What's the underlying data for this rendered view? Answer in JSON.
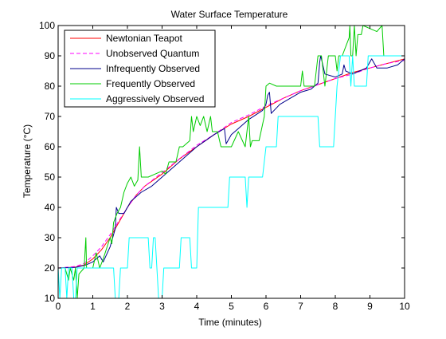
{
  "chart_data": {
    "type": "line",
    "title": "Water Surface Temperature",
    "xlabel": "Time (minutes)",
    "ylabel": "Temperature (°C)",
    "xlim": [
      0,
      10
    ],
    "ylim": [
      10,
      100
    ],
    "x_ticks": [
      0,
      1,
      2,
      3,
      4,
      5,
      6,
      7,
      8,
      9,
      10
    ],
    "y_ticks": [
      10,
      20,
      30,
      40,
      50,
      60,
      70,
      80,
      90,
      100
    ],
    "grid": false,
    "legend_position": "top-left",
    "series": [
      {
        "name": "Newtonian Teapot",
        "color": "#ff0000",
        "dash": "solid",
        "points": [
          [
            0,
            20
          ],
          [
            0.5,
            20.3
          ],
          [
            0.75,
            21
          ],
          [
            1,
            23
          ],
          [
            1.25,
            26
          ],
          [
            1.5,
            30
          ],
          [
            1.75,
            35
          ],
          [
            2,
            40
          ],
          [
            2.25,
            44
          ],
          [
            2.5,
            47
          ],
          [
            3,
            51
          ],
          [
            3.5,
            56
          ],
          [
            4,
            60
          ],
          [
            4.5,
            64
          ],
          [
            5,
            67.5
          ],
          [
            5.5,
            70
          ],
          [
            6,
            73
          ],
          [
            6.5,
            76
          ],
          [
            7,
            78.5
          ],
          [
            7.5,
            80.5
          ],
          [
            8,
            82.5
          ],
          [
            8.5,
            84.5
          ],
          [
            9,
            86
          ],
          [
            9.5,
            87.5
          ],
          [
            10,
            89
          ]
        ]
      },
      {
        "name": "Unobserved Quantum",
        "color": "#ff00ff",
        "dash": "dashed",
        "points": [
          [
            0,
            20
          ],
          [
            0.5,
            20.5
          ],
          [
            0.75,
            21.5
          ],
          [
            1,
            24
          ],
          [
            1.25,
            27
          ],
          [
            1.5,
            31
          ],
          [
            1.75,
            35.5
          ],
          [
            2,
            40
          ],
          [
            2.25,
            44
          ],
          [
            2.5,
            47
          ],
          [
            3,
            51.5
          ],
          [
            3.5,
            56
          ],
          [
            4,
            60.5
          ],
          [
            4.5,
            64
          ],
          [
            5,
            68
          ],
          [
            5.5,
            70.5
          ],
          [
            6,
            73.5
          ],
          [
            6.5,
            76
          ],
          [
            7,
            78.5
          ],
          [
            7.5,
            80.5
          ],
          [
            8,
            82.5
          ],
          [
            8.5,
            84
          ],
          [
            9,
            86
          ],
          [
            9.5,
            87.5
          ],
          [
            10,
            88.5
          ]
        ]
      },
      {
        "name": "Infrequently Observed",
        "color": "#00008b",
        "dash": "solid",
        "points": [
          [
            0,
            20
          ],
          [
            0.5,
            20.2
          ],
          [
            0.8,
            21
          ],
          [
            1,
            22
          ],
          [
            1.2,
            24
          ],
          [
            1.3,
            22
          ],
          [
            1.5,
            27
          ],
          [
            1.65,
            33
          ],
          [
            1.68,
            40
          ],
          [
            1.75,
            38
          ],
          [
            1.9,
            38
          ],
          [
            2.1,
            42
          ],
          [
            2.4,
            45
          ],
          [
            2.7,
            47
          ],
          [
            3,
            50
          ],
          [
            3.5,
            55
          ],
          [
            4,
            60
          ],
          [
            4.5,
            64
          ],
          [
            4.8,
            66
          ],
          [
            4.85,
            61
          ],
          [
            5.0,
            64
          ],
          [
            5.2,
            66
          ],
          [
            5.5,
            69
          ],
          [
            5.9,
            72
          ],
          [
            6.0,
            74
          ],
          [
            6.05,
            77
          ],
          [
            6.1,
            78
          ],
          [
            6.15,
            71
          ],
          [
            6.4,
            74
          ],
          [
            6.7,
            76
          ],
          [
            7,
            78
          ],
          [
            7.3,
            79
          ],
          [
            7.5,
            81
          ],
          [
            7.55,
            88
          ],
          [
            7.58,
            90
          ],
          [
            7.7,
            84
          ],
          [
            8.0,
            83
          ],
          [
            8.2,
            84
          ],
          [
            8.25,
            87
          ],
          [
            8.3,
            85
          ],
          [
            8.5,
            84
          ],
          [
            8.7,
            85
          ],
          [
            8.9,
            86
          ],
          [
            9.0,
            88
          ],
          [
            9.05,
            89
          ],
          [
            9.2,
            86
          ],
          [
            9.5,
            86
          ],
          [
            9.8,
            87
          ],
          [
            10,
            89
          ]
        ]
      },
      {
        "name": "Frequently Observed",
        "color": "#00cc00",
        "dash": "solid",
        "points": [
          [
            0,
            20
          ],
          [
            0.2,
            20
          ],
          [
            0.3,
            16
          ],
          [
            0.35,
            20
          ],
          [
            0.45,
            16
          ],
          [
            0.5,
            20
          ],
          [
            0.55,
            10
          ],
          [
            0.6,
            18
          ],
          [
            0.75,
            20
          ],
          [
            0.8,
            30
          ],
          [
            0.82,
            20
          ],
          [
            1,
            20
          ],
          [
            1.1,
            25
          ],
          [
            1.2,
            20
          ],
          [
            1.3,
            23
          ],
          [
            1.5,
            30
          ],
          [
            1.55,
            28
          ],
          [
            1.6,
            35
          ],
          [
            1.7,
            38
          ],
          [
            1.8,
            40
          ],
          [
            1.9,
            45
          ],
          [
            2.0,
            48
          ],
          [
            2.1,
            50
          ],
          [
            2.2,
            47
          ],
          [
            2.3,
            49
          ],
          [
            2.35,
            60
          ],
          [
            2.4,
            50
          ],
          [
            2.6,
            50
          ],
          [
            2.8,
            51
          ],
          [
            3.0,
            52
          ],
          [
            3.1,
            51
          ],
          [
            3.2,
            55
          ],
          [
            3.4,
            55
          ],
          [
            3.5,
            60
          ],
          [
            3.6,
            60
          ],
          [
            3.8,
            62
          ],
          [
            3.85,
            70
          ],
          [
            3.9,
            65
          ],
          [
            4.0,
            70
          ],
          [
            4.1,
            67
          ],
          [
            4.2,
            70
          ],
          [
            4.3,
            65
          ],
          [
            4.4,
            70
          ],
          [
            4.45,
            65
          ],
          [
            4.6,
            65
          ],
          [
            4.7,
            60
          ],
          [
            4.8,
            60
          ],
          [
            5.0,
            60
          ],
          [
            5.2,
            65
          ],
          [
            5.4,
            60
          ],
          [
            5.5,
            70
          ],
          [
            5.55,
            60
          ],
          [
            5.6,
            62
          ],
          [
            5.8,
            62
          ],
          [
            5.95,
            70
          ],
          [
            6.0,
            80
          ],
          [
            6.1,
            81
          ],
          [
            6.3,
            80
          ],
          [
            6.5,
            80
          ],
          [
            6.7,
            80
          ],
          [
            7.0,
            80
          ],
          [
            7.05,
            85
          ],
          [
            7.1,
            80
          ],
          [
            7.4,
            80
          ],
          [
            7.5,
            90
          ],
          [
            7.6,
            90
          ],
          [
            7.7,
            80
          ],
          [
            7.8,
            90
          ],
          [
            8.0,
            90
          ],
          [
            8.05,
            85
          ],
          [
            8.1,
            90
          ],
          [
            8.2,
            90
          ],
          [
            8.3,
            93
          ],
          [
            8.4,
            96
          ],
          [
            8.42,
            100
          ],
          [
            8.45,
            90
          ],
          [
            8.5,
            90
          ],
          [
            8.55,
            100
          ],
          [
            8.6,
            90
          ],
          [
            8.65,
            97
          ],
          [
            8.75,
            97
          ],
          [
            8.8,
            100
          ],
          [
            9.0,
            99
          ],
          [
            9.2,
            98
          ],
          [
            9.35,
            100
          ],
          [
            9.4,
            90
          ],
          [
            10,
            90
          ]
        ]
      },
      {
        "name": "Aggressively Observed",
        "color": "#00ffff",
        "dash": "solid",
        "points": [
          [
            0,
            20
          ],
          [
            0.05,
            10
          ],
          [
            0.1,
            20
          ],
          [
            0.2,
            20
          ],
          [
            0.25,
            10
          ],
          [
            0.3,
            20
          ],
          [
            0.4,
            20
          ],
          [
            0.45,
            10
          ],
          [
            0.5,
            10
          ],
          [
            0.55,
            20
          ],
          [
            1.6,
            20
          ],
          [
            1.65,
            10
          ],
          [
            1.75,
            10
          ],
          [
            1.8,
            20
          ],
          [
            2.0,
            20
          ],
          [
            2.05,
            30
          ],
          [
            2.6,
            30
          ],
          [
            2.65,
            20
          ],
          [
            2.7,
            20
          ],
          [
            2.75,
            30
          ],
          [
            2.8,
            30
          ],
          [
            2.85,
            20
          ],
          [
            2.9,
            10
          ],
          [
            3.0,
            10
          ],
          [
            3.05,
            20
          ],
          [
            3.5,
            20
          ],
          [
            3.55,
            30
          ],
          [
            3.8,
            30
          ],
          [
            3.85,
            20
          ],
          [
            3.9,
            20
          ],
          [
            4.0,
            20
          ],
          [
            4.05,
            40
          ],
          [
            4.4,
            40
          ],
          [
            4.45,
            40
          ],
          [
            4.9,
            40
          ],
          [
            4.95,
            50
          ],
          [
            5.4,
            50
          ],
          [
            5.45,
            40
          ],
          [
            5.5,
            50
          ],
          [
            5.9,
            50
          ],
          [
            6.0,
            60
          ],
          [
            6.3,
            60
          ],
          [
            6.35,
            70
          ],
          [
            7.0,
            70
          ],
          [
            7.5,
            70
          ],
          [
            7.55,
            60
          ],
          [
            7.95,
            60
          ],
          [
            8.0,
            70
          ],
          [
            8.05,
            80
          ],
          [
            8.15,
            90
          ],
          [
            8.4,
            90
          ],
          [
            8.45,
            80
          ],
          [
            8.5,
            90
          ],
          [
            8.55,
            80
          ],
          [
            8.9,
            80
          ],
          [
            8.95,
            90
          ],
          [
            10,
            90
          ]
        ]
      }
    ]
  }
}
